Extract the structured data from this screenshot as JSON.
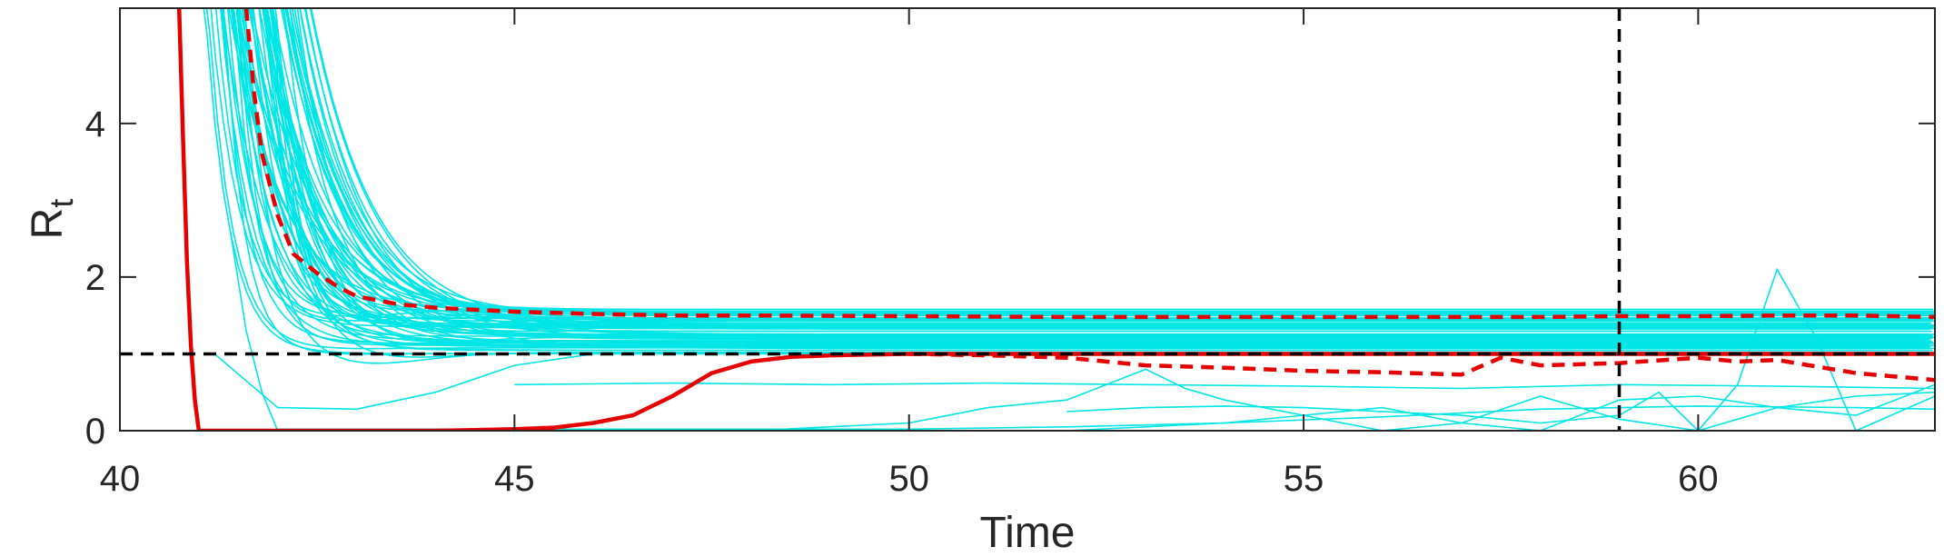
{
  "chart_data": {
    "type": "line",
    "title": "",
    "xlabel": "Time",
    "ylabel": "R",
    "ylabel_subscript": "t",
    "xlim": [
      40,
      63
    ],
    "ylim": [
      0,
      5.5
    ],
    "xticks": [
      40,
      45,
      50,
      55,
      60
    ],
    "yticks": [
      0,
      2,
      4
    ],
    "grid": false,
    "legend": "none",
    "colors": {
      "ensemble": "#00e5e5",
      "estimate": "#e60000",
      "reference": "#000000",
      "axes": "#262626"
    },
    "reference_lines": [
      {
        "orientation": "horizontal",
        "value": 1,
        "style": "dashed"
      },
      {
        "orientation": "vertical",
        "value": 59,
        "style": "dashed"
      }
    ],
    "series": [
      {
        "style": "solid",
        "color": "estimate",
        "x": [
          40.75,
          40.8,
          40.85,
          40.9,
          40.95,
          41.0,
          41.5,
          42,
          42.5,
          43,
          43.5,
          44,
          44.5,
          45,
          45.5,
          46,
          46.5,
          47,
          47.5,
          48,
          48.5,
          49,
          49.5,
          50,
          51,
          52,
          53,
          54,
          55,
          56,
          57,
          58,
          59,
          60,
          61,
          62,
          63
        ],
        "y": [
          5.5,
          3.8,
          2.2,
          1.1,
          0.4,
          0.0,
          0.0,
          0.0,
          0.0,
          0.0,
          0.0,
          0.0,
          0.01,
          0.02,
          0.04,
          0.1,
          0.2,
          0.45,
          0.75,
          0.9,
          0.96,
          0.98,
          0.99,
          1.0,
          1.0,
          1.0,
          1.0,
          1.0,
          1.0,
          1.0,
          1.0,
          1.0,
          1.0,
          1.0,
          1.0,
          1.0,
          1.0
        ]
      },
      {
        "style": "dashed",
        "color": "estimate",
        "x": [
          41.6,
          41.7,
          41.8,
          42,
          42.2,
          42.5,
          42.8,
          43,
          43.5,
          44,
          45,
          46,
          47,
          48,
          50,
          52,
          54,
          56,
          58,
          59,
          60,
          61,
          62,
          63
        ],
        "y": [
          5.5,
          4.4,
          3.6,
          2.8,
          2.3,
          2.05,
          1.85,
          1.75,
          1.65,
          1.6,
          1.55,
          1.52,
          1.5,
          1.5,
          1.49,
          1.48,
          1.48,
          1.48,
          1.48,
          1.49,
          1.49,
          1.5,
          1.5,
          1.48
        ]
      },
      {
        "style": "dashed",
        "color": "estimate",
        "x": [
          50,
          51,
          52,
          53,
          54,
          55,
          56,
          57,
          57.5,
          58,
          59,
          60,
          60.5,
          61,
          62,
          63
        ],
        "y": [
          1.0,
          0.98,
          0.95,
          0.85,
          0.82,
          0.78,
          0.76,
          0.73,
          0.95,
          0.85,
          0.88,
          0.95,
          0.9,
          0.92,
          0.75,
          0.66
        ]
      }
    ]
  }
}
